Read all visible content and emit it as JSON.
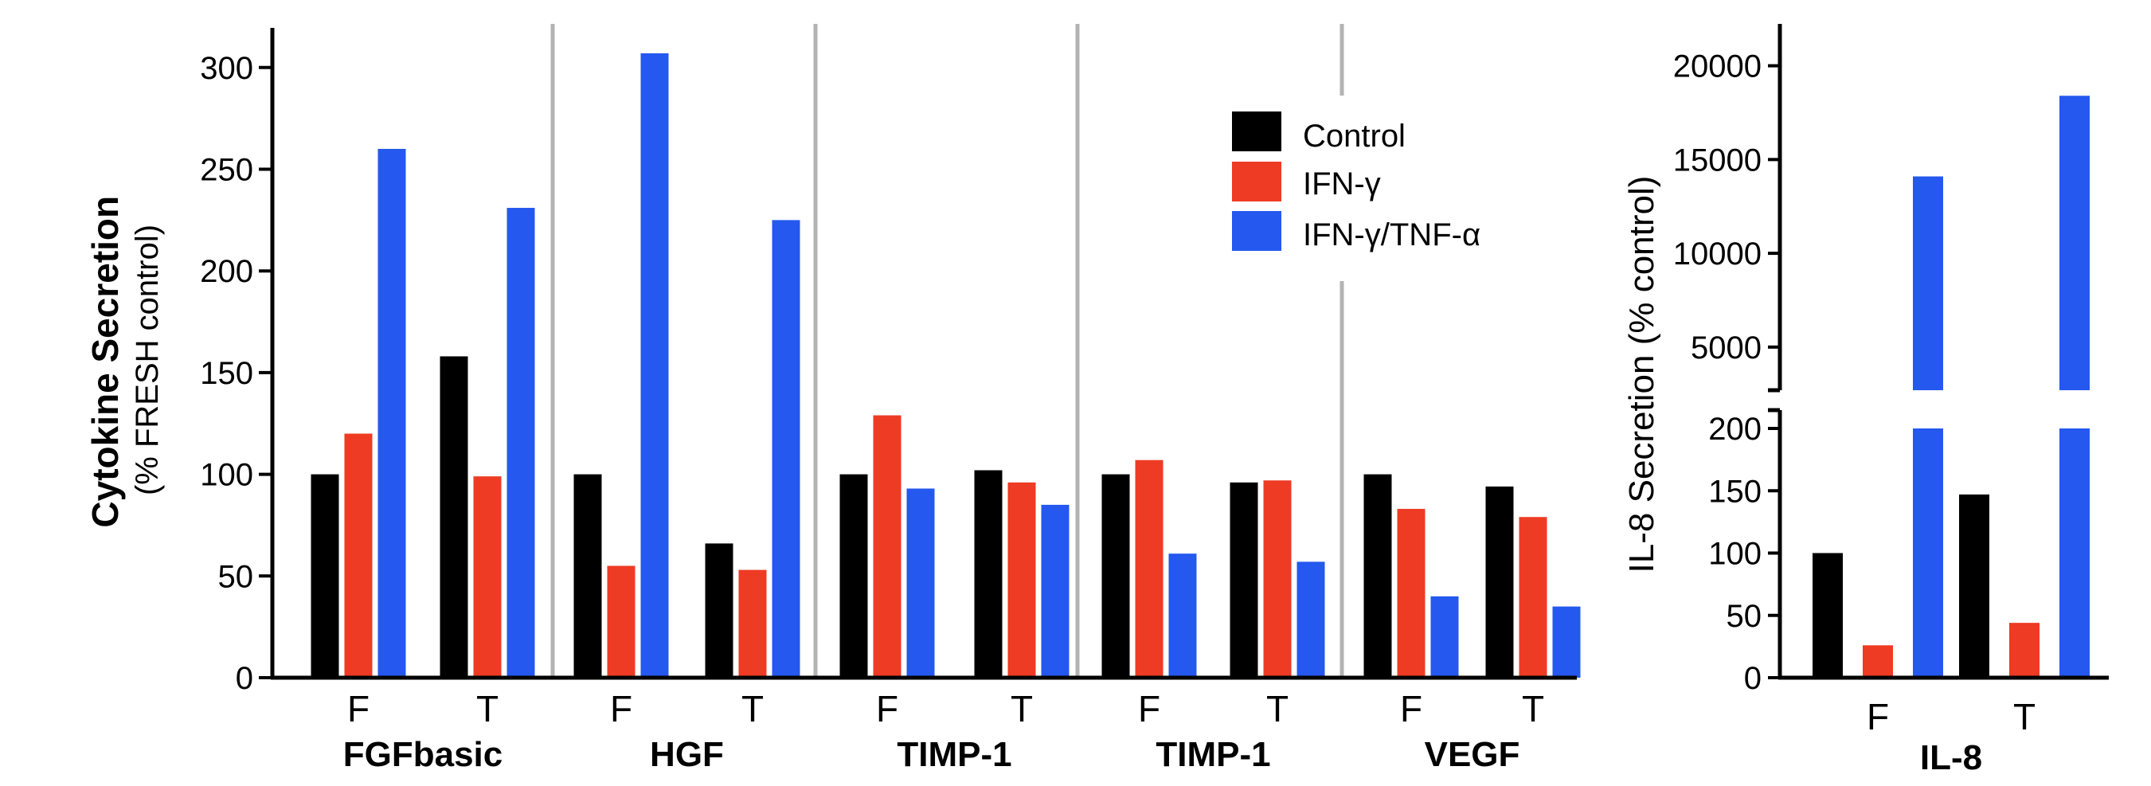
{
  "chart_data": [
    {
      "type": "bar",
      "ylabel": "Cytokine Secretion",
      "ylabel_sub": "(% FRESH control)",
      "ylim": [
        0,
        320
      ],
      "yticks": [
        0,
        50,
        100,
        150,
        200,
        250,
        300
      ],
      "legend_placement": "top-right",
      "groups": [
        {
          "label": "FGFbasic",
          "categories": [
            "F",
            "T"
          ]
        },
        {
          "label": "HGF",
          "categories": [
            "F",
            "T"
          ]
        },
        {
          "label": "TIMP-1",
          "categories": [
            "F",
            "T"
          ]
        },
        {
          "label": "TIMP-1",
          "categories": [
            "F",
            "T"
          ]
        },
        {
          "label": "VEGF",
          "categories": [
            "F",
            "T"
          ]
        }
      ],
      "series": [
        {
          "name": "Control",
          "color": "#000000",
          "values": [
            [
              100,
              158
            ],
            [
              100,
              66
            ],
            [
              100,
              102
            ],
            [
              100,
              96
            ],
            [
              100,
              94
            ]
          ]
        },
        {
          "name": "IFN-γ",
          "color": "#ee3b24",
          "values": [
            [
              120,
              99
            ],
            [
              55,
              53
            ],
            [
              129,
              96
            ],
            [
              107,
              97
            ],
            [
              83,
              79
            ]
          ]
        },
        {
          "name": "IFN-γ/TNF-α",
          "color": "#2458ee",
          "values": [
            [
              260,
              231
            ],
            [
              307,
              225
            ],
            [
              93,
              85
            ],
            [
              61,
              57
            ],
            [
              40,
              35
            ]
          ]
        }
      ]
    },
    {
      "type": "bar",
      "ylabel": "IL-8 Secretion (% control)",
      "broken_axis": true,
      "lower_ylim": [
        0,
        200
      ],
      "lower_yticks": [
        0,
        50,
        100,
        150,
        200
      ],
      "upper_ylim": [
        2700,
        21000
      ],
      "upper_yticks": [
        5000,
        10000,
        15000,
        20000
      ],
      "group_label": "IL-8",
      "categories": [
        "F",
        "T"
      ],
      "series": [
        {
          "name": "Control",
          "color": "#000000",
          "values": [
            100,
            147
          ]
        },
        {
          "name": "IFN-γ",
          "color": "#ee3b24",
          "values": [
            26,
            44
          ]
        },
        {
          "name": "IFN-γ/TNF-α",
          "color": "#2458ee",
          "values": [
            14100,
            18400
          ]
        }
      ]
    }
  ]
}
